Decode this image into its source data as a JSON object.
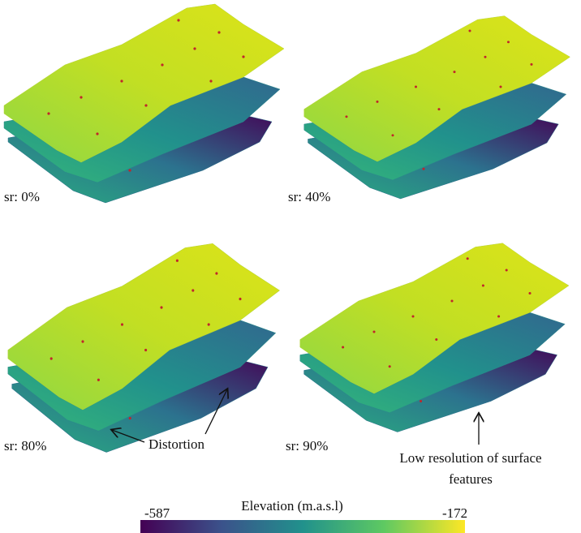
{
  "panels": [
    {
      "label": "sr: 0%"
    },
    {
      "label": "sr: 40%"
    },
    {
      "label": "sr: 80%"
    },
    {
      "label": "sr: 90%"
    }
  ],
  "annotations": {
    "distortion": "Distortion",
    "low_resolution": [
      "Low resolution of surface",
      "features"
    ]
  },
  "colorbar": {
    "title": "Elevation (m.a.s.l)",
    "min": -587,
    "max": -172
  }
}
